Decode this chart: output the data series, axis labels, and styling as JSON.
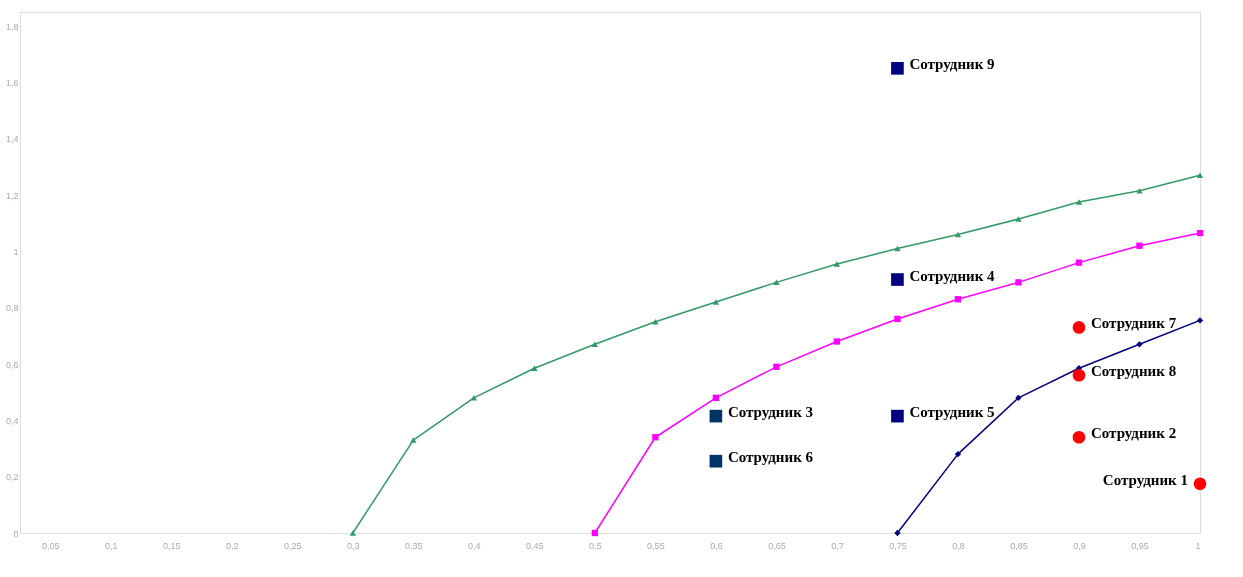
{
  "chart_data": {
    "type": "line",
    "xlim": [
      0.025,
      1
    ],
    "ylim": [
      0,
      1.85
    ],
    "xticks": [
      {
        "value": 0.05,
        "label": "0,05"
      },
      {
        "value": 0.1,
        "label": "0,1"
      },
      {
        "value": 0.15,
        "label": "0,15"
      },
      {
        "value": 0.2,
        "label": "0,2"
      },
      {
        "value": 0.25,
        "label": "0,25"
      },
      {
        "value": 0.3,
        "label": "0,3"
      },
      {
        "value": 0.35,
        "label": "0,35"
      },
      {
        "value": 0.4,
        "label": "0,4"
      },
      {
        "value": 0.45,
        "label": "0,45"
      },
      {
        "value": 0.5,
        "label": "0,5"
      },
      {
        "value": 0.55,
        "label": "0,55"
      },
      {
        "value": 0.6,
        "label": "0,6"
      },
      {
        "value": 0.65,
        "label": "0,65"
      },
      {
        "value": 0.7,
        "label": "0,7"
      },
      {
        "value": 0.75,
        "label": "0,75"
      },
      {
        "value": 0.8,
        "label": "0,8"
      },
      {
        "value": 0.85,
        "label": "0,85"
      },
      {
        "value": 0.9,
        "label": "0,9"
      },
      {
        "value": 0.95,
        "label": "0,95"
      },
      {
        "value": 1,
        "label": "1"
      }
    ],
    "yticks": [
      0,
      {
        "value": 0.2,
        "label": "0,2"
      },
      {
        "value": 0.4,
        "label": "0,4"
      },
      {
        "value": 0.6,
        "label": "0,6"
      },
      {
        "value": 0.8,
        "label": "0,8"
      },
      1,
      {
        "value": 1.2,
        "label": "1,2"
      },
      {
        "value": 1.4,
        "label": "1,4"
      },
      {
        "value": 1.6,
        "label": "1,6"
      },
      {
        "value": 1.8,
        "label": "1,8"
      }
    ],
    "grid": false,
    "legend": false,
    "series": [
      {
        "color": "#339966",
        "marker": "triangle",
        "x": [
          0.3,
          0.35,
          0.4,
          0.45,
          0.5,
          0.55,
          0.6,
          0.65,
          0.7,
          0.75,
          0.8,
          0.85,
          0.9,
          0.95,
          1
        ],
        "values": [
          0,
          0.33,
          0.48,
          0.585,
          0.67,
          0.75,
          0.82,
          0.89,
          0.955,
          1.01,
          1.06,
          1.115,
          1.175,
          1.215,
          1.27
        ]
      },
      {
        "color": "#ff00ff",
        "marker": "square",
        "x": [
          0.5,
          0.55,
          0.6,
          0.65,
          0.7,
          0.75,
          0.8,
          0.85,
          0.9,
          0.95,
          1
        ],
        "values": [
          0,
          0.34,
          0.48,
          0.59,
          0.68,
          0.76,
          0.83,
          0.89,
          0.96,
          1.02,
          1.065
        ]
      },
      {
        "color": "#000080",
        "marker": "diamond",
        "x": [
          0.75,
          0.8,
          0.85,
          0.9,
          0.95,
          1
        ],
        "values": [
          0,
          0.28,
          0.48,
          0.585,
          0.67,
          0.755
        ]
      },
      {
        "type": "scatter",
        "name": "Сотрудник 1",
        "color": "#ff0000",
        "marker": "circle",
        "x": [
          1
        ],
        "values": [
          0.175
        ]
      },
      {
        "type": "scatter",
        "name": "Сотрудник 2",
        "color": "#ff0000",
        "marker": "circle",
        "x": [
          0.9
        ],
        "values": [
          0.34
        ]
      },
      {
        "type": "scatter",
        "name": "Сотрудник 3",
        "color": "#003366",
        "marker": "square",
        "x": [
          0.6
        ],
        "values": [
          0.415
        ]
      },
      {
        "type": "scatter",
        "name": "Сотрудник 4",
        "color": "#000080",
        "marker": "square",
        "x": [
          0.75
        ],
        "values": [
          0.9
        ]
      },
      {
        "type": "scatter",
        "name": "Сотрудник 5",
        "color": "#000080",
        "marker": "square",
        "x": [
          0.75
        ],
        "values": [
          0.415
        ]
      },
      {
        "type": "scatter",
        "name": "Сотрудник 6",
        "color": "#003366",
        "marker": "square",
        "x": [
          0.6
        ],
        "values": [
          0.255
        ]
      },
      {
        "type": "scatter",
        "name": "Сотрудник 7",
        "color": "#ff0000",
        "marker": "circle",
        "x": [
          0.9
        ],
        "values": [
          0.73
        ]
      },
      {
        "type": "scatter",
        "name": "Сотрудник 8",
        "color": "#ff0000",
        "marker": "circle",
        "x": [
          0.9
        ],
        "values": [
          0.56
        ]
      },
      {
        "type": "scatter",
        "name": "Сотрудник 9",
        "color": "#000080",
        "marker": "square",
        "x": [
          0.75
        ],
        "values": [
          1.65
        ]
      }
    ]
  }
}
